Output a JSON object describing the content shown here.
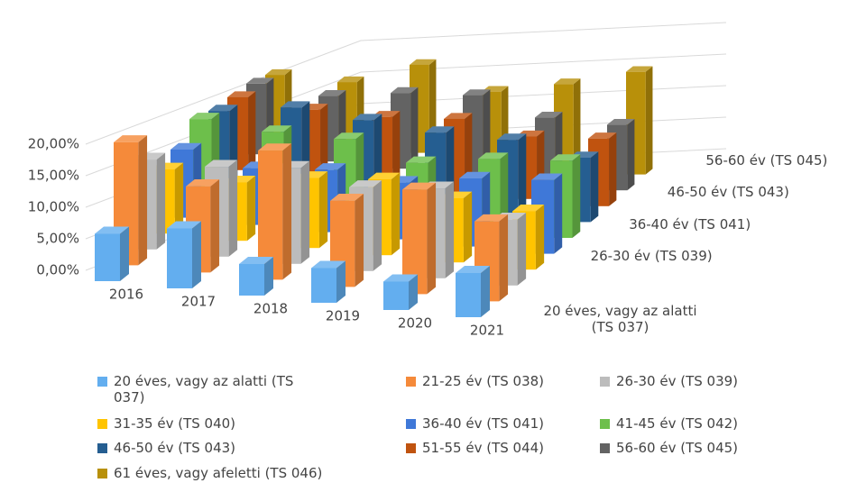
{
  "chart_data": {
    "type": "bar3d",
    "categories": [
      "2016",
      "2017",
      "2018",
      "2019",
      "2020",
      "2021"
    ],
    "series": [
      {
        "name": "20 éves, vagy az alatti (TS 037)",
        "color": "#63aeef",
        "values": [
          7.5,
          9.5,
          5,
          5.5,
          4.5,
          7
        ]
      },
      {
        "name": "21-25 év (TS 038)",
        "color": "#f58a3a",
        "values": [
          20,
          14,
          21,
          14,
          17,
          13
        ]
      },
      {
        "name": "26-30 év (TS 039)",
        "color": "#bcbcbc",
        "values": [
          15,
          15,
          16,
          14,
          15,
          11
        ]
      },
      {
        "name": "31-35 év (TS 040)",
        "color": "#ffc400",
        "values": [
          11,
          10,
          12,
          13,
          11,
          10
        ]
      },
      {
        "name": "36-40 év (TS 041)",
        "color": "#3f78d8",
        "values": [
          12,
          10,
          11,
          10,
          12,
          13
        ]
      },
      {
        "name": "41-45 év (TS 042)",
        "color": "#6dbf4b",
        "values": [
          15,
          14,
          14,
          11,
          13,
          14
        ]
      },
      {
        "name": "46-50 év (TS 043)",
        "color": "#255e91",
        "values": [
          14,
          16,
          15,
          14,
          14,
          12
        ]
      },
      {
        "name": "51-55 év (TS 044)",
        "color": "#c0530f",
        "values": [
          14,
          13,
          13,
          14,
          12,
          13
        ]
      },
      {
        "name": "56-60 év (TS 045)",
        "color": "#636363",
        "values": [
          14,
          13,
          15,
          16,
          13,
          13
        ]
      },
      {
        "name": "61 éves, vagy afeletti (TS 046)",
        "color": "#b8900a",
        "values": [
          13,
          13,
          18,
          14,
          17,
          21
        ]
      }
    ],
    "ylim": [
      0,
      20
    ],
    "yticks": [
      {
        "value": 0,
        "label": "0,00%"
      },
      {
        "value": 5,
        "label": "5,00%"
      },
      {
        "value": 10,
        "label": "10,00%"
      },
      {
        "value": 15,
        "label": "15,00%"
      },
      {
        "value": 20,
        "label": "20,00%"
      }
    ],
    "grid": true
  }
}
